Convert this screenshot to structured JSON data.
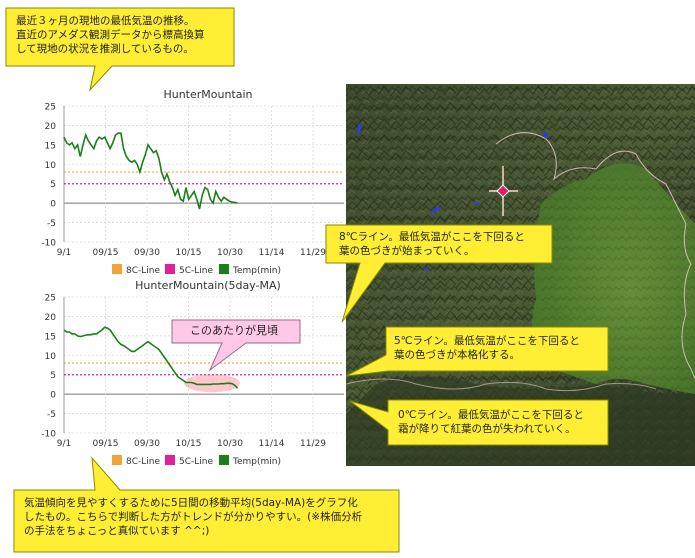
{
  "callouts": {
    "top": "最近３ヶ月の現地の最低気温の推移。\n直近のアメダス観測データから標高換算\nして現地の状況を推測しているもの。",
    "peak": "このあたりが見頃",
    "line8": "8℃ライン。最低気温がここを下回ると\n葉の色づきが始まっていく。",
    "line5": "5℃ライン。最低気温がここを下回ると\n葉の色づきが本格化する。",
    "line0": "0℃ライン。最低気温がここを下回ると\n霜が降りて紅葉の色が失われていく。",
    "bottom": "気温傾向を見やすくするために5日間の移動平均(5day-MA)をグラフ化\nしたもの。こちらで判断した方がトレンドが分かりやすい。(※株価分析\nの手法をちょこっと真似ています ^^;)"
  },
  "colors": {
    "line8": "#f3a33a",
    "line5": "#e0209e",
    "temp": "#1c7d1c",
    "callout_fill": "#ffee33",
    "callout_border": "#8a8a00",
    "peak_fill": "#ffc8e6",
    "marker": "#e02060"
  },
  "chart_data": [
    {
      "type": "line",
      "title": "HunterMountain",
      "ylim": [
        -10,
        25
      ],
      "yticks": [
        "25",
        "20",
        "15",
        "10",
        "5",
        "0",
        "-5",
        "-10"
      ],
      "xticks": [
        "9/1",
        "09/15",
        "09/30",
        "10/15",
        "10/30",
        "11/14",
        "11/29"
      ],
      "legend_position": "bottom",
      "legend": [
        "8C-Line",
        "5C-Line",
        "Temp(min)"
      ],
      "series": [
        {
          "name": "8C-Line",
          "values": [
            8,
            8
          ]
        },
        {
          "name": "5C-Line",
          "values": [
            5,
            5
          ]
        },
        {
          "name": "Temp(min)",
          "values": [
            17,
            15.5,
            15,
            15.5,
            14,
            15,
            12,
            15,
            17.5,
            16,
            15,
            14,
            16,
            17,
            16.5,
            17,
            15.5,
            14,
            15.5,
            17.5,
            18,
            18,
            14,
            12,
            11,
            10.5,
            11,
            10,
            8,
            10.5,
            12.5,
            15,
            14,
            13,
            13.5,
            11.5,
            8,
            6,
            7.5,
            5.5,
            4,
            2,
            3.5,
            1,
            0.5,
            4,
            1,
            2,
            3,
            1,
            -1.5,
            2,
            4,
            3.5,
            1,
            0,
            3,
            1.5,
            0.5,
            1.5,
            1,
            0.5,
            0.3,
            0.2,
            0
          ]
        }
      ]
    },
    {
      "type": "line",
      "title": "HunterMountain(5day-MA)",
      "ylim": [
        -10,
        25
      ],
      "yticks": [
        "25",
        "20",
        "15",
        "10",
        "5",
        "0",
        "-5",
        "-10"
      ],
      "xticks": [
        "9/1",
        "09/15",
        "09/30",
        "10/15",
        "10/30",
        "11/14",
        "11/29"
      ],
      "legend_position": "bottom",
      "legend": [
        "8C-Line",
        "5C-Line",
        "Temp(min)"
      ],
      "series": [
        {
          "name": "8C-Line",
          "values": [
            8,
            8
          ]
        },
        {
          "name": "5C-Line",
          "values": [
            5,
            5
          ]
        },
        {
          "name": "Temp(min)",
          "values": [
            16.5,
            16,
            16,
            15.5,
            15.5,
            15,
            14.8,
            15,
            15.2,
            15.3,
            15.3,
            15.5,
            15.5,
            16,
            16.5,
            17.2,
            17,
            16.5,
            15.5,
            14.5,
            13.5,
            12.8,
            12.5,
            12,
            11.5,
            11,
            11,
            11.5,
            12,
            12.5,
            13,
            13.5,
            13,
            12.5,
            12,
            11.5,
            10.5,
            9.5,
            8.5,
            7.5,
            6.5,
            5.5,
            4.5,
            4,
            3.5,
            3,
            3,
            3,
            2.8,
            2.5,
            2.5,
            2.5,
            2.5,
            2.5,
            2.5,
            2.6,
            2.6,
            2.6,
            2.7,
            2.7,
            2.8,
            2.8,
            2.7,
            2.3,
            1.5
          ]
        }
      ]
    }
  ]
}
